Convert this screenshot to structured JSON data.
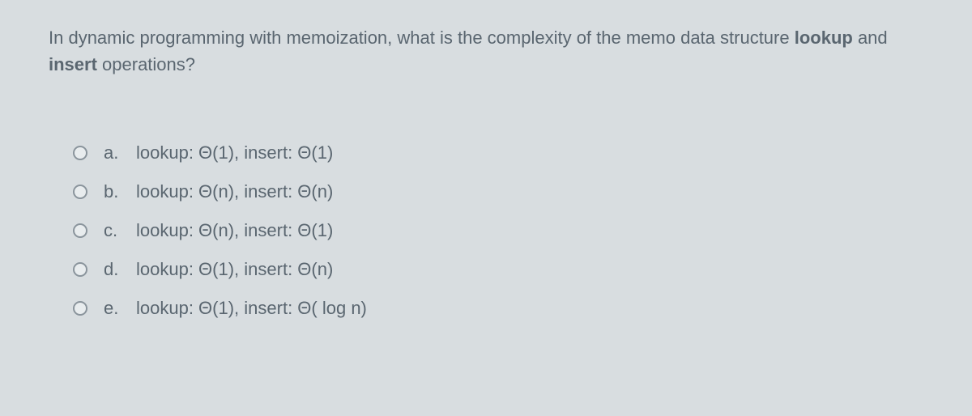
{
  "question": {
    "part1": "In dynamic programming with memoization, what is the complexity of the memo data structure ",
    "bold1": "lookup",
    "mid": " and ",
    "bold2": "insert",
    "part2": " operations?"
  },
  "options": [
    {
      "letter": "a.",
      "text": "lookup: Θ(1), insert: Θ(1)"
    },
    {
      "letter": "b.",
      "text": "lookup: Θ(n), insert: Θ(n)"
    },
    {
      "letter": "c.",
      "text": "lookup: Θ(n), insert: Θ(1)"
    },
    {
      "letter": "d.",
      "text": "lookup: Θ(1), insert: Θ(n)"
    },
    {
      "letter": "e.",
      "text": "lookup: Θ(1), insert: Θ( log n)"
    }
  ],
  "colors": {
    "background": "#d8dde0",
    "text": "#5a6670",
    "radio_border": "#8a949c",
    "radio_fill": "#e8ecee"
  },
  "typography": {
    "font_family": "Arial, Helvetica, sans-serif",
    "question_fontsize": 22,
    "option_fontsize": 22
  }
}
